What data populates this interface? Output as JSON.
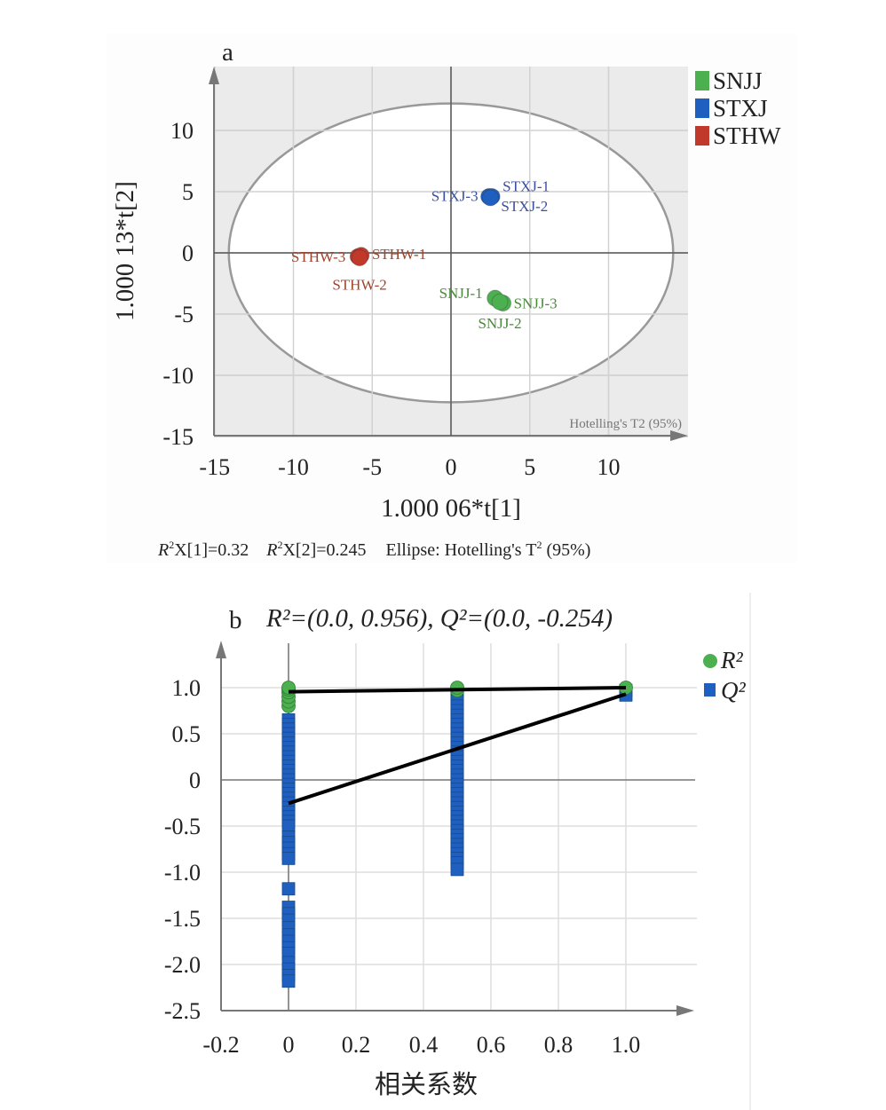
{
  "chart_data": [
    {
      "type": "scatter",
      "panel_label": "a",
      "xlabel": "1.000 06*t[1]",
      "ylabel": "1.000 13*t[2]",
      "xlim": [
        -15,
        15.2
      ],
      "ylim": [
        -15,
        14.5
      ],
      "xticks": [
        "-15",
        "-10",
        "-5",
        "0",
        "5",
        "10"
      ],
      "xtick_values": [
        -15,
        -10,
        -5,
        0,
        5,
        10
      ],
      "yticks": [
        "10",
        "5",
        "0",
        "-5",
        "-10",
        "-15"
      ],
      "ytick_values": [
        10,
        5,
        0,
        -5,
        -10,
        -15
      ],
      "grid": true,
      "legend_position": "top-right",
      "ellipse": {
        "label": "Hotelling's T2 (95%)",
        "rx": 14.1,
        "ry": 12.2
      },
      "series": [
        {
          "name": "SNJJ",
          "color": "#4caf50",
          "label_color": "#4a8a3a",
          "points": [
            {
              "label": "SNJJ-1",
              "x": 2.8,
              "y": -3.7
            },
            {
              "label": "SNJJ-3",
              "x": 3.3,
              "y": -4.1
            },
            {
              "label": "SNJJ-2",
              "x": 3.1,
              "y": -4.0
            }
          ]
        },
        {
          "name": "STXJ",
          "color": "#1f5fbf",
          "label_color": "#3a4fa0",
          "points": [
            {
              "label": "STXJ-3",
              "x": 2.4,
              "y": 4.6
            },
            {
              "label": "STXJ-1",
              "x": 2.6,
              "y": 4.6
            },
            {
              "label": "STXJ-2",
              "x": 2.5,
              "y": 4.5
            }
          ]
        },
        {
          "name": "STHW",
          "color": "#c0392b",
          "label_color": "#a0442e",
          "points": [
            {
              "label": "STHW-3",
              "x": -5.9,
              "y": -0.3
            },
            {
              "label": "STHW-1",
              "x": -5.7,
              "y": -0.2
            },
            {
              "label": "STHW-2",
              "x": -5.8,
              "y": -0.4
            }
          ]
        }
      ],
      "footnote": {
        "r2x1": "X[1]=0.32",
        "r2x2": "X[2]=0.245",
        "ellipse_text": "Ellipse: Hotelling's T",
        "ellipse_conf": " (95%)"
      }
    },
    {
      "type": "scatter",
      "panel_label": "b",
      "title": "R²=(0.0, 0.956), Q²=(0.0, -0.254)",
      "xlabel": "相关系数",
      "ylabel": "",
      "xlim": [
        -0.2,
        1.2
      ],
      "ylim": [
        -2.5,
        1.5
      ],
      "xticks": [
        "-0.2",
        "0",
        "0.2",
        "0.4",
        "0.6",
        "0.8",
        "1.0"
      ],
      "xtick_values": [
        -0.2,
        0,
        0.2,
        0.4,
        0.6,
        0.8,
        1.0
      ],
      "yticks": [
        "1.0",
        "0.5",
        "0",
        "-0.5",
        "-1.0",
        "-1.5",
        "-2.0",
        "-2.5"
      ],
      "ytick_values": [
        1.0,
        0.5,
        0,
        -0.5,
        -1.0,
        -1.5,
        -2.0,
        -2.5
      ],
      "grid": true,
      "legend_position": "top-right",
      "series": [
        {
          "name": "R²",
          "marker": "circle",
          "color": "#4caf50",
          "points": [
            [
              0,
              0.8
            ],
            [
              0,
              0.85
            ],
            [
              0,
              0.9
            ],
            [
              0,
              0.95
            ],
            [
              0,
              0.98
            ],
            [
              0,
              1.0
            ],
            [
              0.5,
              0.97
            ],
            [
              0.5,
              1.0
            ],
            [
              1.0,
              1.0
            ]
          ],
          "regression": {
            "intercept": 0.956,
            "x": [
              0,
              1.0
            ],
            "y": [
              0.956,
              1.0
            ]
          }
        },
        {
          "name": "Q²",
          "marker": "square",
          "color": "#1f5fbf",
          "points": [
            [
              0,
              0.65
            ],
            [
              0,
              0.6
            ],
            [
              0,
              0.55
            ],
            [
              0,
              0.5
            ],
            [
              0,
              0.45
            ],
            [
              0,
              0.4
            ],
            [
              0,
              0.35
            ],
            [
              0,
              0.3
            ],
            [
              0,
              0.25
            ],
            [
              0,
              0.2
            ],
            [
              0,
              0.15
            ],
            [
              0,
              0.1
            ],
            [
              0,
              0.05
            ],
            [
              0,
              0.0
            ],
            [
              0,
              -0.05
            ],
            [
              0,
              -0.1
            ],
            [
              0,
              -0.15
            ],
            [
              0,
              -0.2
            ],
            [
              0,
              -0.25
            ],
            [
              0,
              -0.3
            ],
            [
              0,
              -0.35
            ],
            [
              0,
              -0.4
            ],
            [
              0,
              -0.45
            ],
            [
              0,
              -0.5
            ],
            [
              0,
              -0.62
            ],
            [
              0,
              -0.68
            ],
            [
              0,
              -0.74
            ],
            [
              0,
              -0.8
            ],
            [
              0,
              -0.85
            ],
            [
              0,
              -1.18
            ],
            [
              0,
              -1.38
            ],
            [
              0,
              -1.45
            ],
            [
              0,
              -1.52
            ],
            [
              0,
              -1.6
            ],
            [
              0,
              -1.68
            ],
            [
              0,
              -1.75
            ],
            [
              0,
              -1.82
            ],
            [
              0,
              -1.88
            ],
            [
              0,
              -1.98
            ],
            [
              0,
              -2.05
            ],
            [
              0,
              -2.12
            ],
            [
              0,
              -2.18
            ],
            [
              0.5,
              0.96
            ],
            [
              0.5,
              0.9
            ],
            [
              0.5,
              0.85
            ],
            [
              0.5,
              0.8
            ],
            [
              0.5,
              0.75
            ],
            [
              0.5,
              0.7
            ],
            [
              0.5,
              0.65
            ],
            [
              0.5,
              0.6
            ],
            [
              0.5,
              0.55
            ],
            [
              0.5,
              0.5
            ],
            [
              0.5,
              0.45
            ],
            [
              0.5,
              0.4
            ],
            [
              0.5,
              0.35
            ],
            [
              0.5,
              0.3
            ],
            [
              0.5,
              0.25
            ],
            [
              0.5,
              0.2
            ],
            [
              0.5,
              0.15
            ],
            [
              0.5,
              0.1
            ],
            [
              0.5,
              0.05
            ],
            [
              0.5,
              0.0
            ],
            [
              0.5,
              -0.05
            ],
            [
              0.5,
              -0.1
            ],
            [
              0.5,
              -0.15
            ],
            [
              0.5,
              -0.2
            ],
            [
              0.5,
              -0.25
            ],
            [
              0.5,
              -0.3
            ],
            [
              0.5,
              -0.35
            ],
            [
              0.5,
              -0.4
            ],
            [
              0.5,
              -0.45
            ],
            [
              0.5,
              -0.5
            ],
            [
              0.5,
              -0.55
            ],
            [
              0.5,
              -0.6
            ],
            [
              0.5,
              -0.65
            ],
            [
              0.5,
              -0.7
            ],
            [
              0.5,
              -0.75
            ],
            [
              0.5,
              -0.8
            ],
            [
              0.5,
              -0.85
            ],
            [
              0.5,
              -0.9
            ],
            [
              0.5,
              -0.97
            ],
            [
              1.0,
              0.97
            ],
            [
              1.0,
              0.92
            ]
          ],
          "regression": {
            "intercept": -0.254,
            "x": [
              0,
              1.0
            ],
            "y": [
              -0.254,
              0.93
            ]
          }
        }
      ]
    }
  ]
}
